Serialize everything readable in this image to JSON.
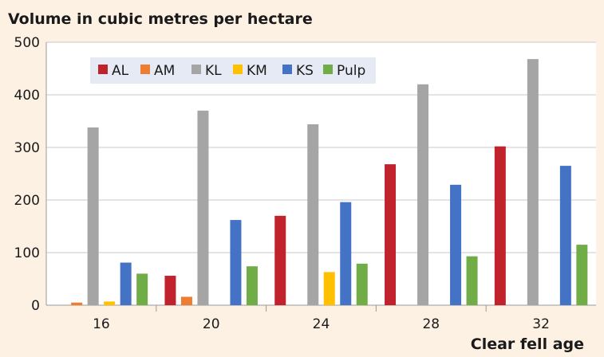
{
  "chart_data": {
    "type": "bar",
    "title": "Volume in cubic metres per hectare",
    "xlabel": "Clear fell age",
    "ylabel": "",
    "ylim": [
      0,
      500
    ],
    "yticks": [
      0,
      100,
      200,
      300,
      400,
      500
    ],
    "categories": [
      "16",
      "20",
      "24",
      "28",
      "32"
    ],
    "grid": true,
    "legend_position": "top-left",
    "series": [
      {
        "name": "AL",
        "color": "#c0232c",
        "values": [
          0,
          56,
          170,
          268,
          302
        ]
      },
      {
        "name": "AM",
        "color": "#ed7d31",
        "values": [
          5,
          16,
          0,
          0,
          0
        ]
      },
      {
        "name": "KL",
        "color": "#a5a5a5",
        "values": [
          338,
          370,
          344,
          420,
          468
        ]
      },
      {
        "name": "KM",
        "color": "#ffc000",
        "values": [
          7,
          0,
          63,
          0,
          0
        ]
      },
      {
        "name": "KS",
        "color": "#4472c4",
        "values": [
          81,
          162,
          196,
          229,
          265
        ]
      },
      {
        "name": "Pulp",
        "color": "#70ad47",
        "values": [
          60,
          74,
          79,
          93,
          115
        ]
      }
    ]
  }
}
